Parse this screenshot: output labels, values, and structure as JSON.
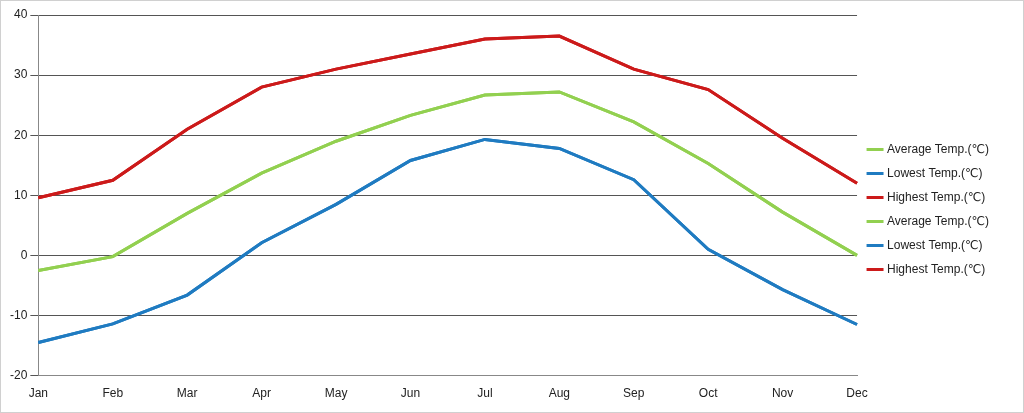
{
  "chart_data": {
    "type": "line",
    "categories": [
      "Jan",
      "Feb",
      "Mar",
      "Apr",
      "May",
      "Jun",
      "Jul",
      "Aug",
      "Sep",
      "Oct",
      "Nov",
      "Dec"
    ],
    "series": [
      {
        "name": "Average Temp.(℃)",
        "color": "#92d050",
        "values": [
          -2.5,
          -0.2,
          7,
          13.7,
          19,
          23.3,
          26.7,
          27.2,
          22.2,
          15.3,
          7.2,
          0
        ]
      },
      {
        "name": "Lowest Temp.(℃)",
        "color": "#1f7bc1",
        "values": [
          -14.5,
          -11.4,
          -6.6,
          2.1,
          8.5,
          15.8,
          19.3,
          17.8,
          12.6,
          1,
          -5.7,
          -11.5
        ]
      },
      {
        "name": "Highest Temp.(℃)",
        "color": "#cc1a1a",
        "values": [
          9.6,
          12.5,
          21,
          28,
          31,
          33.5,
          36,
          36.5,
          31,
          27.6,
          19.5,
          12
        ]
      },
      {
        "name": "Average Temp.(℃)",
        "color": "#92d050",
        "values": [
          -2.5,
          -0.2,
          7,
          13.7,
          19,
          23.3,
          26.7,
          27.2,
          22.2,
          15.3,
          7.2,
          0
        ]
      },
      {
        "name": "Lowest Temp.(℃)",
        "color": "#1f7bc1",
        "values": [
          -14.5,
          -11.4,
          -6.6,
          2.1,
          8.5,
          15.8,
          19.3,
          17.8,
          12.6,
          1,
          -5.7,
          -11.5
        ]
      },
      {
        "name": "Highest Temp.(℃)",
        "color": "#cc1a1a",
        "values": [
          9.6,
          12.5,
          21,
          28,
          31,
          33.5,
          36,
          36.5,
          31,
          27.6,
          19.5,
          12
        ]
      }
    ],
    "ylim": [
      -20,
      40
    ],
    "yticks": [
      -20,
      -10,
      0,
      10,
      20,
      30,
      40
    ],
    "grid": true,
    "legend": "right",
    "marker": "none"
  }
}
